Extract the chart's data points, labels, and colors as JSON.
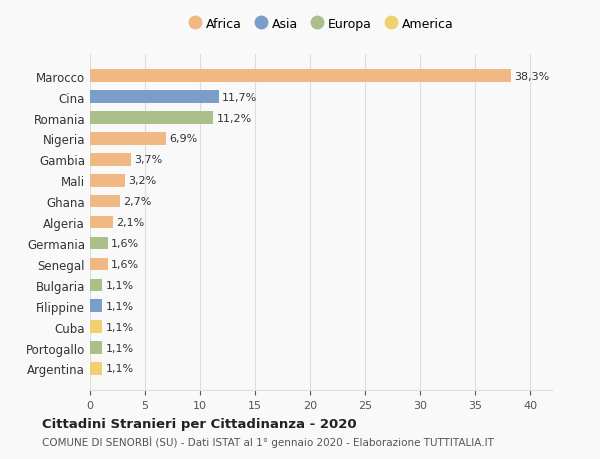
{
  "countries": [
    "Marocco",
    "Cina",
    "Romania",
    "Nigeria",
    "Gambia",
    "Mali",
    "Ghana",
    "Algeria",
    "Germania",
    "Senegal",
    "Bulgaria",
    "Filippine",
    "Cuba",
    "Portogallo",
    "Argentina"
  ],
  "values": [
    38.3,
    11.7,
    11.2,
    6.9,
    3.7,
    3.2,
    2.7,
    2.1,
    1.6,
    1.6,
    1.1,
    1.1,
    1.1,
    1.1,
    1.1
  ],
  "labels": [
    "38,3%",
    "11,7%",
    "11,2%",
    "6,9%",
    "3,7%",
    "3,2%",
    "2,7%",
    "2,1%",
    "1,6%",
    "1,6%",
    "1,1%",
    "1,1%",
    "1,1%",
    "1,1%",
    "1,1%"
  ],
  "continents": [
    "Africa",
    "Asia",
    "Europa",
    "Africa",
    "Africa",
    "Africa",
    "Africa",
    "Africa",
    "Europa",
    "Africa",
    "Europa",
    "Asia",
    "America",
    "Europa",
    "America"
  ],
  "colors": {
    "Africa": "#F0B882",
    "Asia": "#7B9EC8",
    "Europa": "#AABF8A",
    "America": "#F0D070"
  },
  "legend_order": [
    "Africa",
    "Asia",
    "Europa",
    "America"
  ],
  "legend_colors": [
    "#F0B882",
    "#7B9EC8",
    "#AABF8A",
    "#F0D070"
  ],
  "title": "Cittadini Stranieri per Cittadinanza - 2020",
  "subtitle": "COMUNE DI SENORBÌ (SU) - Dati ISTAT al 1° gennaio 2020 - Elaborazione TUTTITALIA.IT",
  "xlim": [
    0,
    42
  ],
  "xticks": [
    0,
    5,
    10,
    15,
    20,
    25,
    30,
    35,
    40
  ],
  "bg_color": "#f9f9f9",
  "grid_color": "#dddddd"
}
